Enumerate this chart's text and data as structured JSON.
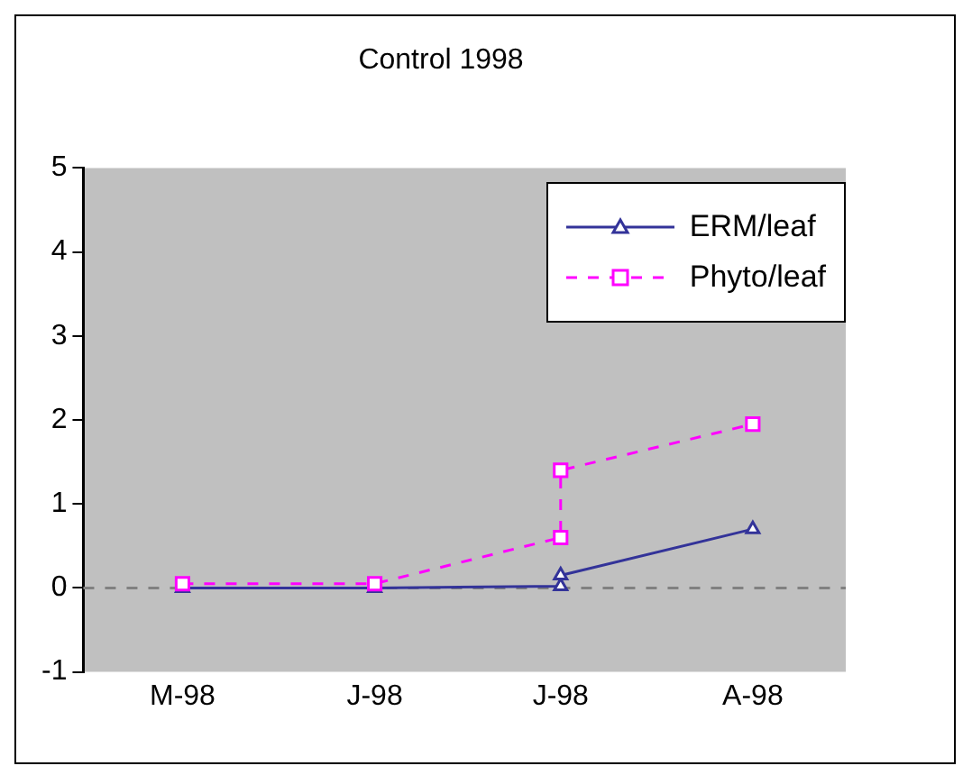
{
  "chart_data": {
    "type": "line",
    "title": "Control 1998",
    "xlim": [
      "1998-04-15",
      "1998-08-16"
    ],
    "xticks": [
      {
        "value": "1998-05",
        "label": "M-98"
      },
      {
        "value": "1998-06",
        "label": "J-98"
      },
      {
        "value": "1998-07",
        "label": "J-98"
      },
      {
        "value": "1998-08",
        "label": "A-98"
      }
    ],
    "ylim": [
      -1,
      5
    ],
    "yticks": [
      -1,
      0,
      1,
      2,
      3,
      4,
      5
    ],
    "grid": false,
    "legend": "top right",
    "ref_lines": [
      {
        "axis": "y",
        "value": 0,
        "color": "#808080",
        "line_style": "dashed"
      }
    ],
    "series": [
      {
        "name": "ERM/leaf",
        "color": "#333399",
        "x": [
          "1998-05",
          "1998-06",
          "1998-07",
          "1998-07",
          "1998-08"
        ],
        "values": [
          0,
          0,
          0.02,
          0.15,
          0.7
        ],
        "marker": "triangle",
        "line_style": "solid"
      },
      {
        "name": "Phyto/leaf",
        "color": "#ff00ff",
        "x": [
          "1998-05",
          "1998-06",
          "1998-07",
          "1998-07",
          "1998-08"
        ],
        "values": [
          0.05,
          0.05,
          0.6,
          1.4,
          1.95
        ],
        "marker": "square",
        "line_style": "dashed"
      }
    ]
  }
}
